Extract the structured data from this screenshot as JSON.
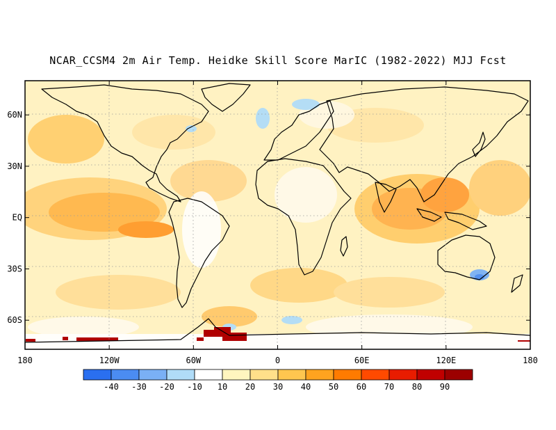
{
  "title": "NCAR_CCSM4 2m Air Temp. Heidke Skill Score MarIC (1982-2022) MJJ Fcst",
  "map": {
    "projection": "equirectangular",
    "lon_range": [
      -180,
      180
    ],
    "lat_range": [
      -77,
      80
    ],
    "grid": "dotted",
    "lat_labels": [
      "60N",
      "30N",
      "EQ",
      "30S",
      "60S"
    ],
    "lat_values": [
      60,
      30,
      0,
      -30,
      -60
    ],
    "lon_labels": [
      "180",
      "120W",
      "60W",
      "0",
      "60E",
      "120E",
      "180"
    ],
    "lon_values": [
      -180,
      -120,
      -60,
      0,
      60,
      120,
      180
    ]
  },
  "colorbar": {
    "labels": [
      "-40",
      "-30",
      "-20",
      "-10",
      "10",
      "20",
      "30",
      "40",
      "50",
      "60",
      "70",
      "80",
      "90"
    ],
    "colors": [
      "#2a6ff0",
      "#4b8cf2",
      "#7ab0f5",
      "#b0dcf8",
      "#ffffff",
      "#fff5bf",
      "#ffe08a",
      "#ffc64f",
      "#ffa31f",
      "#ff7b00",
      "#ff4a00",
      "#e81c00",
      "#c00000",
      "#9c0000"
    ]
  },
  "colors": {
    "land_outline": "#000000",
    "grid": "#9a9a9a"
  }
}
